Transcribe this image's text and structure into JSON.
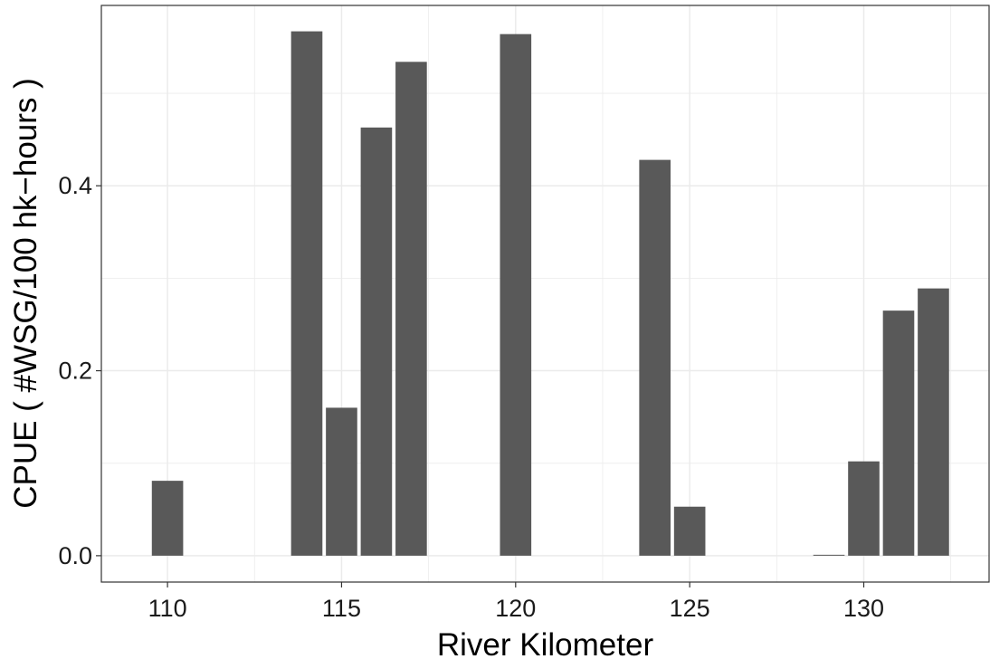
{
  "chart_data": {
    "type": "bar",
    "xlabel": "River Kilometer",
    "ylabel": "CPUE ( #WSG/100 hk−hours )",
    "x": [
      110,
      114,
      115,
      116,
      117,
      120,
      124,
      125,
      129,
      130,
      131,
      132
    ],
    "values": [
      0.081,
      0.567,
      0.16,
      0.463,
      0.534,
      0.564,
      0.428,
      0.053,
      0.001,
      0.102,
      0.265,
      0.289
    ],
    "xlim": [
      108.1,
      133.6
    ],
    "ylim": [
      -0.0285,
      0.595
    ],
    "xticks": [
      110,
      115,
      120,
      125,
      130
    ],
    "xtick_labels": [
      "110",
      "115",
      "120",
      "125",
      "130"
    ],
    "yticks": [
      0.0,
      0.2,
      0.4
    ],
    "ytick_labels": [
      "0.0",
      "0.2",
      "0.4"
    ],
    "bar_width": 0.9,
    "grid": true,
    "colors": {
      "bar": "#595959",
      "grid": "#ebebeb",
      "border": "#333333",
      "background": "#ffffff"
    }
  }
}
